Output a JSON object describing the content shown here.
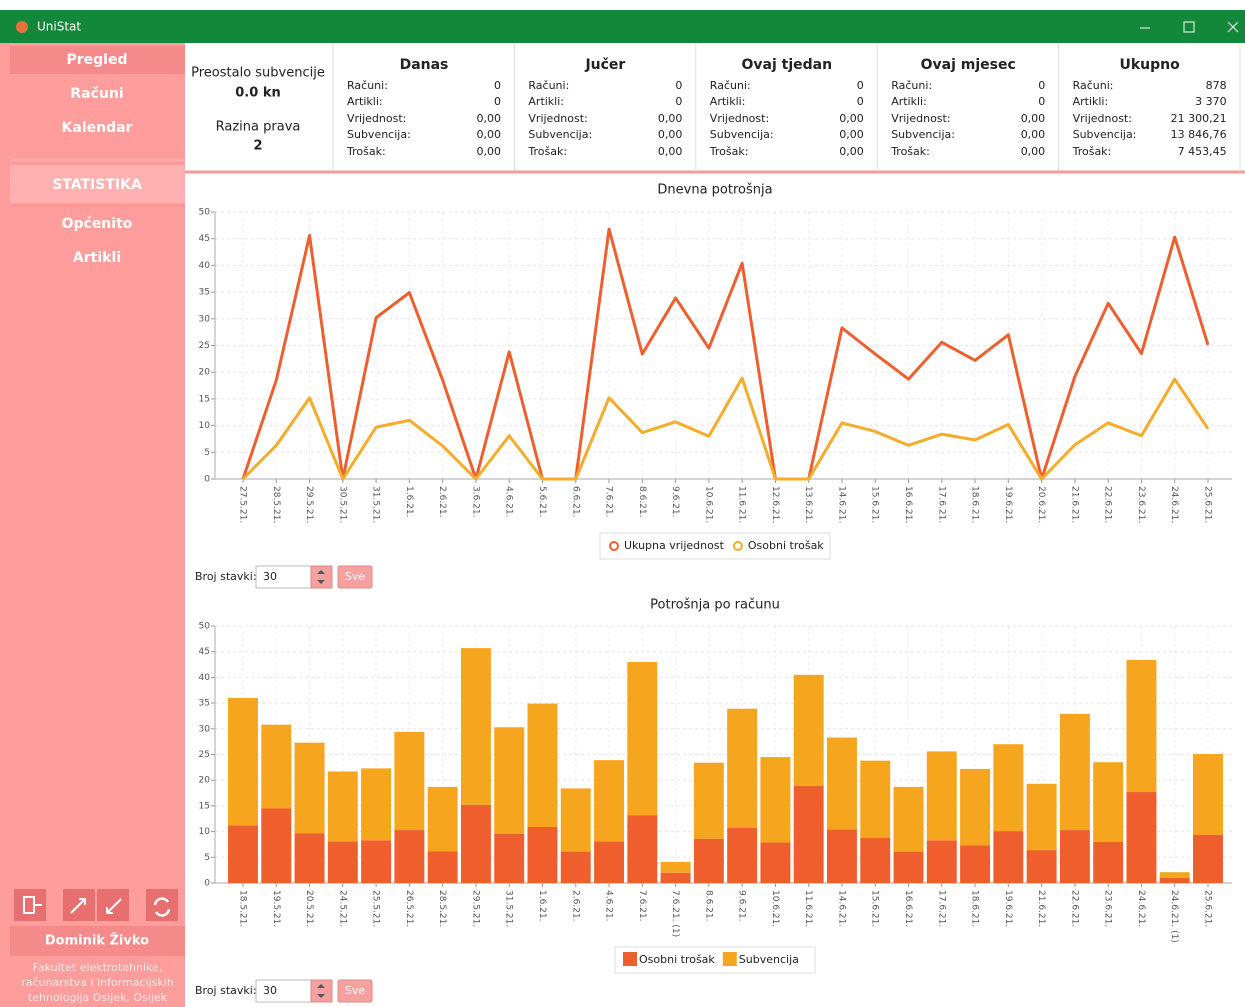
{
  "window": {
    "title": "UniStat"
  },
  "sidebar": {
    "menu": [
      "Pregled",
      "Računi",
      "Kalendar"
    ],
    "section": "STATISTIKA",
    "stats_menu": [
      "Općenito",
      "Artikli"
    ],
    "user": "Dominik Živko",
    "institution": "Fakultet elektrotehnike, računarstva i informacijskih tehnologija Osijek, Osijek"
  },
  "summary": {
    "subsidy_label": "Preostalo subvencije",
    "subsidy": "0.0 kn",
    "level_label": "Razina prava",
    "level": "2",
    "row_labels": [
      "Računi:",
      "Artikli:",
      "Vrijednost:",
      "Subvencija:",
      "Trošak:"
    ],
    "periods": [
      {
        "title": "Danas",
        "values": [
          "0",
          "0",
          "0,00",
          "0,00",
          "0,00"
        ]
      },
      {
        "title": "Jučer",
        "values": [
          "0",
          "0",
          "0,00",
          "0,00",
          "0,00"
        ]
      },
      {
        "title": "Ovaj tjedan",
        "values": [
          "0",
          "0",
          "0,00",
          "0,00",
          "0,00"
        ]
      },
      {
        "title": "Ovaj mjesec",
        "values": [
          "0",
          "0",
          "0,00",
          "0,00",
          "0,00"
        ]
      },
      {
        "title": "Ukupno",
        "values": [
          "878",
          "3 370",
          "21 300,21",
          "13 846,76",
          "7 453,45"
        ]
      }
    ]
  },
  "chart_data": [
    {
      "type": "line",
      "title": "Dnevna potrošnja",
      "categories": [
        "27.5.21.",
        "28.5.21.",
        "29.5.21.",
        "30.5.21.",
        "31.5.21.",
        "1.6.21.",
        "2.6.21.",
        "3.6.21.",
        "4.6.21.",
        "5.6.21.",
        "6.6.21.",
        "7.6.21.",
        "8.6.21.",
        "9.6.21.",
        "10.6.21.",
        "11.6.21.",
        "12.6.21.",
        "13.6.21.",
        "14.6.21.",
        "15.6.21.",
        "16.6.21.",
        "17.6.21.",
        "18.6.21.",
        "19.6.21.",
        "20.6.21.",
        "21.6.21.",
        "22.6.21.",
        "23.6.21.",
        "24.6.21.",
        "25.6.21."
      ],
      "series": [
        {
          "name": "Ukupna vrijednost",
          "color": "#ee5f30",
          "values": [
            0,
            18.5,
            45.6,
            0,
            30.2,
            34.9,
            18.5,
            0,
            23.8,
            0,
            0,
            46.8,
            23.4,
            33.9,
            24.5,
            40.4,
            0,
            0,
            28.3,
            23.4,
            18.7,
            25.6,
            22.2,
            27.0,
            0,
            19.2,
            32.9,
            23.5,
            45.3,
            25.1
          ]
        },
        {
          "name": "Osobni trošak",
          "color": "#f5ac2a",
          "values": [
            0,
            6.3,
            15.2,
            0,
            9.7,
            11.0,
            6.2,
            0,
            8.1,
            0,
            0,
            15.2,
            8.7,
            10.7,
            8.0,
            18.9,
            0,
            0,
            10.5,
            8.9,
            6.3,
            8.4,
            7.3,
            10.2,
            0,
            6.4,
            10.5,
            8.1,
            18.7,
            9.4
          ]
        }
      ],
      "ylim": [
        0,
        50
      ],
      "yticks": [
        0,
        5,
        10,
        15,
        20,
        25,
        30,
        35,
        40,
        45,
        50
      ],
      "grid": true,
      "legend": "bottom"
    },
    {
      "type": "bar",
      "stacked": true,
      "title": "Potrošnja po računu",
      "categories": [
        "18.5.21.",
        "19.5.21.",
        "20.5.21.",
        "24.5.21.",
        "25.5.21.",
        "26.5.21.",
        "28.5.21.",
        "29.5.21.",
        "31.5.21.",
        "1.6.21.",
        "2.6.21.",
        "4.6.21.",
        "7.6.21.",
        "7.6.21. (1)",
        "8.6.21.",
        "9.6.21.",
        "10.6.21.",
        "11.6.21.",
        "14.6.21.",
        "15.6.21.",
        "16.6.21.",
        "17.6.21.",
        "18.6.21.",
        "19.6.21.",
        "21.6.21.",
        "22.6.21.",
        "23.6.21.",
        "24.6.21.",
        "24.6.21. (1)",
        "25.6.21."
      ],
      "series": [
        {
          "name": "Osobni trošak",
          "color": "#ef5f2e",
          "values": [
            11.2,
            14.5,
            9.7,
            8.1,
            8.3,
            10.3,
            6.2,
            15.2,
            9.6,
            10.9,
            6.1,
            8.1,
            13.2,
            2.0,
            8.6,
            10.7,
            7.9,
            18.9,
            10.4,
            8.8,
            6.1,
            8.3,
            7.3,
            10.1,
            6.4,
            10.3,
            8.0,
            17.7,
            1.0,
            9.4
          ]
        },
        {
          "name": "Subvencija",
          "color": "#f6a51f",
          "values": [
            24.8,
            16.3,
            17.6,
            13.6,
            14.0,
            19.1,
            12.5,
            30.5,
            20.7,
            24.0,
            12.3,
            15.8,
            29.8,
            2.1,
            14.8,
            23.2,
            16.6,
            21.6,
            17.9,
            15.0,
            12.6,
            17.3,
            14.9,
            16.9,
            12.9,
            22.6,
            15.5,
            25.7,
            1.1,
            15.7
          ]
        }
      ],
      "ylim": [
        0,
        50
      ],
      "yticks": [
        0,
        5,
        10,
        15,
        20,
        25,
        30,
        35,
        40,
        45,
        50
      ],
      "grid": true,
      "legend": "bottom"
    }
  ],
  "controls": {
    "label": "Broj stavki:",
    "count": "30",
    "button": "Sve"
  }
}
